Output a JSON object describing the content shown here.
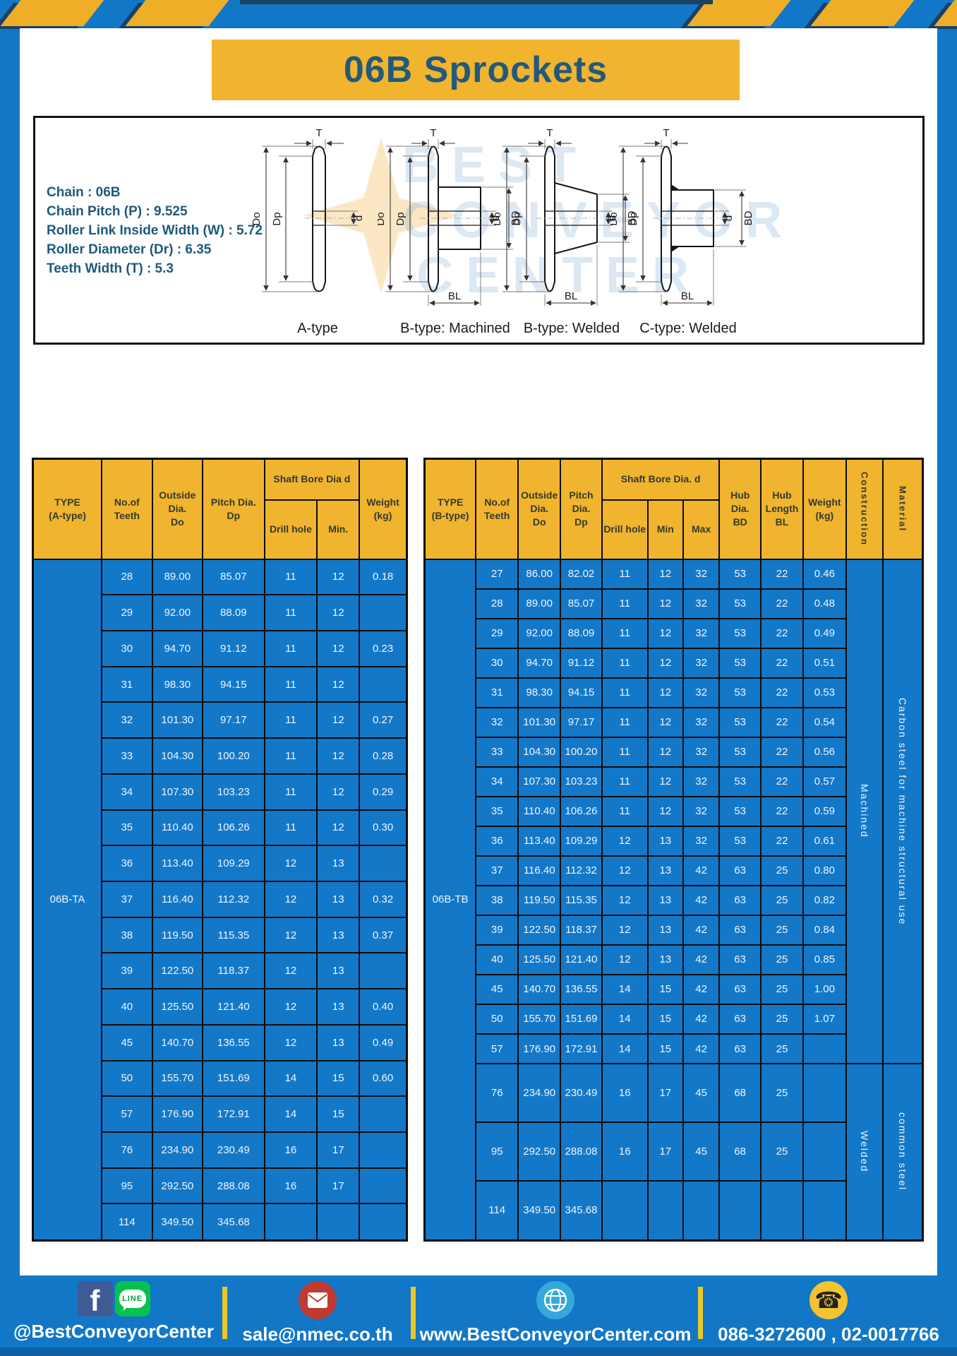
{
  "title": "06B Sprockets",
  "specs": {
    "lines": [
      "Chain : 06B",
      "Chain Pitch (P) : 9.525",
      "Roller Link Inside Width (W) : 5.72",
      "Roller Diameter (Dr) : 6.35",
      "Teeth Width (T) : 5.3"
    ]
  },
  "diagrams": {
    "labels": [
      "A-type",
      "B-type: Machined",
      "B-type: Welded",
      "C-type: Welded"
    ],
    "dims": {
      "T": "T",
      "Do": "Do",
      "Dp": "Dp",
      "d": "d",
      "BD": "BD",
      "BL": "BL"
    }
  },
  "watermark": {
    "lines": [
      "BEST",
      "CONVEYOR",
      "CENTER"
    ]
  },
  "table_a": {
    "type_value": "06B-TA",
    "headers": {
      "type": [
        "TYPE",
        "(A-type)"
      ],
      "teeth": [
        "No.of",
        "Teeth"
      ],
      "outside": [
        "Outside",
        "Dia.",
        "Do"
      ],
      "pitch": [
        "Pitch Dia.",
        "Dp"
      ],
      "shaft_group": "Shaft Bore Dia d",
      "drill": "Drill hole",
      "min": "Min.",
      "weight": [
        "Weight",
        "(kg)"
      ]
    },
    "rows": [
      [
        "28",
        "89.00",
        "85.07",
        "11",
        "12",
        "0.18"
      ],
      [
        "29",
        "92.00",
        "88.09",
        "11",
        "12",
        ""
      ],
      [
        "30",
        "94.70",
        "91.12",
        "11",
        "12",
        "0.23"
      ],
      [
        "31",
        "98.30",
        "94.15",
        "11",
        "12",
        ""
      ],
      [
        "32",
        "101.30",
        "97.17",
        "11",
        "12",
        "0.27"
      ],
      [
        "33",
        "104.30",
        "100.20",
        "11",
        "12",
        "0.28"
      ],
      [
        "34",
        "107.30",
        "103.23",
        "11",
        "12",
        "0.29"
      ],
      [
        "35",
        "110.40",
        "106.26",
        "11",
        "12",
        "0.30"
      ],
      [
        "36",
        "113.40",
        "109.29",
        "12",
        "13",
        ""
      ],
      [
        "37",
        "116.40",
        "112.32",
        "12",
        "13",
        "0.32"
      ],
      [
        "38",
        "119.50",
        "115.35",
        "12",
        "13",
        "0.37"
      ],
      [
        "39",
        "122.50",
        "118.37",
        "12",
        "13",
        ""
      ],
      [
        "40",
        "125.50",
        "121.40",
        "12",
        "13",
        "0.40"
      ],
      [
        "45",
        "140.70",
        "136.55",
        "12",
        "13",
        "0.49"
      ],
      [
        "50",
        "155.70",
        "151.69",
        "14",
        "15",
        "0.60"
      ],
      [
        "57",
        "176.90",
        "172.91",
        "14",
        "15",
        ""
      ],
      [
        "76",
        "234.90",
        "230.49",
        "16",
        "17",
        ""
      ],
      [
        "95",
        "292.50",
        "288.08",
        "16",
        "17",
        ""
      ],
      [
        "114",
        "349.50",
        "345.68",
        "",
        "",
        ""
      ]
    ]
  },
  "table_b": {
    "type_value": "06B-TB",
    "headers": {
      "type": [
        "TYPE",
        "(B-type)"
      ],
      "teeth": [
        "No.of",
        "Teeth"
      ],
      "outside": [
        "Outside",
        "Dia.",
        "Do"
      ],
      "pitch": [
        "Pitch",
        "Dia.",
        "Dp"
      ],
      "shaft_group": "Shaft Bore Dia. d",
      "drill": "Drill hole",
      "min": "Min",
      "max": "Max",
      "hub_dia": [
        "Hub",
        "Dia.",
        "BD"
      ],
      "hub_len": [
        "Hub",
        "Length",
        "BL"
      ],
      "weight": [
        "Weight",
        "(kg)"
      ],
      "construction": "Construction",
      "material": "Material"
    },
    "rows": [
      [
        "27",
        "86.00",
        "82.02",
        "11",
        "12",
        "32",
        "53",
        "22",
        "0.46"
      ],
      [
        "28",
        "89.00",
        "85.07",
        "11",
        "12",
        "32",
        "53",
        "22",
        "0.48"
      ],
      [
        "29",
        "92.00",
        "88.09",
        "11",
        "12",
        "32",
        "53",
        "22",
        "0.49"
      ],
      [
        "30",
        "94.70",
        "91.12",
        "11",
        "12",
        "32",
        "53",
        "22",
        "0.51"
      ],
      [
        "31",
        "98.30",
        "94.15",
        "11",
        "12",
        "32",
        "53",
        "22",
        "0.53"
      ],
      [
        "32",
        "101.30",
        "97.17",
        "11",
        "12",
        "32",
        "53",
        "22",
        "0.54"
      ],
      [
        "33",
        "104.30",
        "100.20",
        "11",
        "12",
        "32",
        "53",
        "22",
        "0.56"
      ],
      [
        "34",
        "107.30",
        "103.23",
        "11",
        "12",
        "32",
        "53",
        "22",
        "0.57"
      ],
      [
        "35",
        "110.40",
        "106.26",
        "11",
        "12",
        "32",
        "53",
        "22",
        "0.59"
      ],
      [
        "36",
        "113.40",
        "109.29",
        "12",
        "13",
        "32",
        "53",
        "22",
        "0.61"
      ],
      [
        "37",
        "116.40",
        "112.32",
        "12",
        "13",
        "42",
        "63",
        "25",
        "0.80"
      ],
      [
        "38",
        "119.50",
        "115.35",
        "12",
        "13",
        "42",
        "63",
        "25",
        "0.82"
      ],
      [
        "39",
        "122.50",
        "118.37",
        "12",
        "13",
        "42",
        "63",
        "25",
        "0.84"
      ],
      [
        "40",
        "125.50",
        "121.40",
        "12",
        "13",
        "42",
        "63",
        "25",
        "0.85"
      ],
      [
        "45",
        "140.70",
        "136.55",
        "14",
        "15",
        "42",
        "63",
        "25",
        "1.00"
      ],
      [
        "50",
        "155.70",
        "151.69",
        "14",
        "15",
        "42",
        "63",
        "25",
        "1.07"
      ],
      [
        "57",
        "176.90",
        "172.91",
        "14",
        "15",
        "42",
        "63",
        "25",
        ""
      ],
      [
        "76",
        "234.90",
        "230.49",
        "16",
        "17",
        "45",
        "68",
        "25",
        ""
      ],
      [
        "95",
        "292.50",
        "288.08",
        "16",
        "17",
        "45",
        "68",
        "25",
        ""
      ],
      [
        "114",
        "349.50",
        "345.68",
        "",
        "",
        "",
        "",
        "",
        ""
      ]
    ],
    "construction_groups": [
      {
        "label": "Machined",
        "span": 17
      },
      {
        "label": "Welded",
        "span": 3
      }
    ],
    "material_groups": [
      {
        "label": "Carbon steel for machine structural use",
        "span": 17
      },
      {
        "label": "common steel",
        "span": 3
      }
    ]
  },
  "footer": {
    "facebook_handle": "@BestConveyorCenter",
    "email": "sale@nmec.co.th",
    "website": "www.BestConveyorCenter.com",
    "phones": "086-3272600 , 02-0017766",
    "icons": {
      "facebook_glyph": "f",
      "line_label": "LINE",
      "phone_glyph": "☎"
    }
  },
  "colors": {
    "page_blue": "#1277c6",
    "accent_yellow": "#f0b42f",
    "title_text": "#23597b",
    "table_cell_blue": "#1478c8",
    "border_black": "#0c0c0c",
    "footer_divider_yellow": "#e9c728"
  }
}
